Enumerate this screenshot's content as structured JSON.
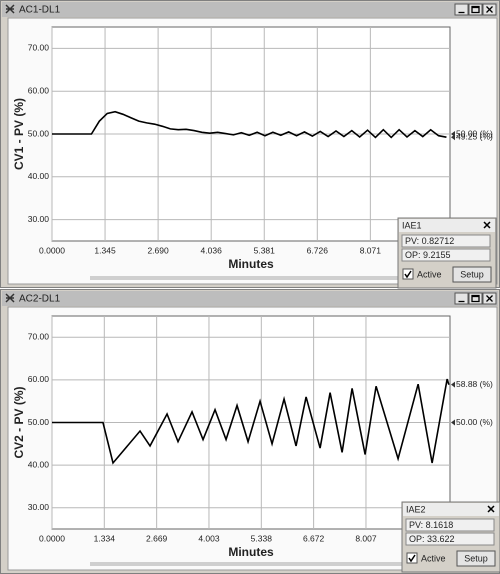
{
  "windows": [
    {
      "title": "AC1-DL1",
      "iae": {
        "title": "IAE1",
        "pv": "PV: 0.82712",
        "op": "OP: 9.2155",
        "active": "Active",
        "button": "Setup"
      }
    },
    {
      "title": "AC2-DL1",
      "iae": {
        "title": "IAE2",
        "pv": "PV: 8.1618",
        "op": "OP: 33.622",
        "active": "Active",
        "button": "Setup"
      }
    }
  ],
  "chart_data": [
    {
      "type": "line",
      "y_label": "CV1 - PV (%)",
      "x_label": "Minutes",
      "x": [
        0,
        0.2,
        0.4,
        0.6,
        0.8,
        1.0,
        1.2,
        1.4,
        1.6,
        1.8,
        2.0,
        2.2,
        2.4,
        2.6,
        2.8,
        3.0,
        3.2,
        3.4,
        3.6,
        3.8,
        4.0,
        4.2,
        4.4,
        4.6,
        4.8,
        5.0,
        5.2,
        5.4,
        5.6,
        5.8,
        6.0,
        6.2,
        6.4,
        6.6,
        6.8,
        7.0,
        7.2,
        7.4,
        7.6,
        7.8,
        8.0,
        8.2,
        8.4,
        8.6,
        8.8,
        9.0,
        9.2,
        9.4,
        9.6,
        9.8,
        10.0
      ],
      "series": [
        {
          "color": "#000000",
          "values": [
            50,
            50,
            50,
            50,
            50,
            50,
            53,
            54.8,
            55.2,
            54.6,
            53.8,
            53.0,
            52.6,
            52.3,
            51.8,
            51.2,
            51.0,
            51.1,
            50.8,
            50.4,
            50.2,
            50.4,
            50.1,
            49.8,
            50.3,
            49.7,
            50.4,
            49.6,
            50.4,
            49.7,
            50.5,
            49.6,
            50.5,
            49.5,
            50.6,
            49.4,
            50.7,
            49.4,
            50.8,
            49.3,
            50.9,
            49.2,
            51.0,
            49.2,
            51.0,
            49.3,
            50.8,
            49.4,
            51.0,
            49.6,
            49.25
          ]
        }
      ],
      "xlim": [
        0,
        10.09
      ],
      "ylim": [
        25,
        75
      ],
      "xticks": [
        {
          "value": 0,
          "label": "0.0000"
        },
        1.345,
        {
          "value": 2.69,
          "label": "2.690"
        },
        4.036,
        5.381,
        6.726,
        8.071
      ],
      "yticks": [
        {
          "value": 30,
          "label": "30.00"
        },
        {
          "value": 40,
          "label": "40.00"
        },
        {
          "value": 50,
          "label": "50.00"
        },
        {
          "value": 60,
          "label": "60.00"
        },
        {
          "value": 70,
          "label": "70.00"
        }
      ],
      "grid": true,
      "annotations": [
        {
          "value": 50,
          "label": "50.00 (%)"
        },
        {
          "value": 49.25,
          "label": "49.25 (%)"
        }
      ]
    },
    {
      "type": "line",
      "y_label": "CV2 - PV (%)",
      "x_label": "Minutes",
      "x": [
        0,
        1.3,
        1.556,
        2.245,
        2.5,
        2.934,
        3.214,
        3.571,
        3.852,
        4.158,
        4.439,
        4.719,
        5.0,
        5.306,
        5.612,
        5.918,
        6.224,
        6.48,
        6.837,
        7.092,
        7.398,
        7.653,
        7.985,
        8.265,
        8.826,
        9.337,
        9.694,
        10.077,
        10.12
      ],
      "series": [
        {
          "color": "#000000",
          "values": [
            50,
            50,
            40.5,
            48.0,
            44.5,
            52.0,
            45.5,
            52.5,
            46.0,
            53.0,
            46.0,
            54.0,
            45.5,
            55.0,
            45.0,
            55.5,
            44.5,
            56.0,
            44.0,
            57.0,
            43.0,
            58.0,
            42.5,
            58.5,
            41.5,
            59.0,
            40.5,
            60.2,
            58.88
          ]
        }
      ],
      "xlim": [
        0,
        10.15
      ],
      "ylim": [
        25,
        75
      ],
      "xticks": [
        {
          "value": 0,
          "label": "0.0000"
        },
        1.334,
        2.669,
        4.003,
        5.338,
        6.672,
        8.007
      ],
      "yticks": [
        {
          "value": 30,
          "label": "30.00"
        },
        {
          "value": 40,
          "label": "40.00"
        },
        {
          "value": 50,
          "label": "50.00"
        },
        {
          "value": 60,
          "label": "60.00"
        },
        {
          "value": 70,
          "label": "70.00"
        }
      ],
      "grid": true,
      "annotations": [
        {
          "value": 58.88,
          "label": "58.88 (%)"
        },
        {
          "value": 50,
          "label": "50.00 (%)"
        }
      ]
    }
  ]
}
